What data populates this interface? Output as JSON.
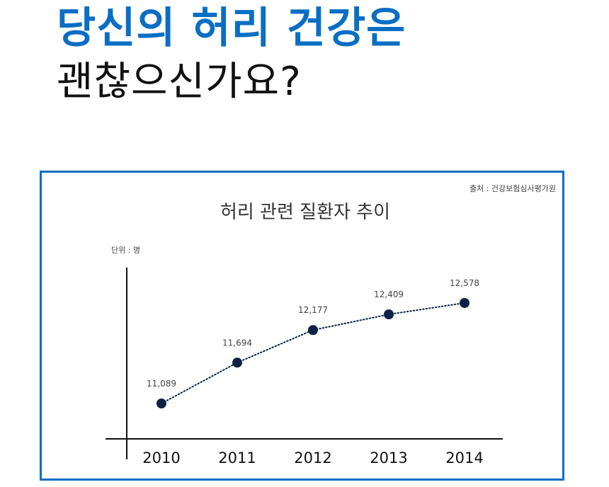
{
  "headline": {
    "line1": "당신의 허리 건강은",
    "line2": "괜찮으신가요?"
  },
  "colors": {
    "accent": "#0a6ec4",
    "point": "#0b2244",
    "text": "#111111",
    "label": "#444444"
  },
  "chart_data": {
    "type": "line",
    "title": "허리 관련 질환자 추이",
    "source": "출처 : 건강보험심사평가원",
    "unit_label": "단위 : 명",
    "categories": [
      "2010",
      "2011",
      "2012",
      "2013",
      "2014"
    ],
    "values": [
      11089,
      11694,
      12177,
      12409,
      12578
    ],
    "value_labels": [
      "11,089",
      "11,694",
      "12,177",
      "12,409",
      "12,578"
    ],
    "line_style": "dotted",
    "grid": false,
    "legend": "none"
  }
}
